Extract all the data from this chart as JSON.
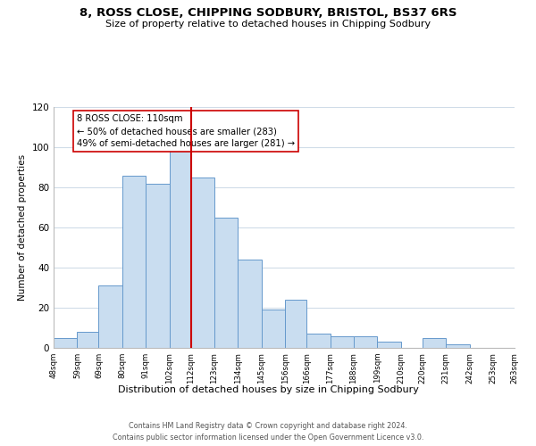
{
  "title": "8, ROSS CLOSE, CHIPPING SODBURY, BRISTOL, BS37 6RS",
  "subtitle": "Size of property relative to detached houses in Chipping Sodbury",
  "xlabel": "Distribution of detached houses by size in Chipping Sodbury",
  "ylabel": "Number of detached properties",
  "bins": [
    48,
    59,
    69,
    80,
    91,
    102,
    112,
    123,
    134,
    145,
    156,
    166,
    177,
    188,
    199,
    210,
    220,
    231,
    242,
    253,
    263
  ],
  "counts": [
    5,
    8,
    31,
    86,
    82,
    99,
    85,
    65,
    44,
    19,
    24,
    7,
    6,
    6,
    3,
    0,
    5,
    2,
    0,
    0
  ],
  "bar_color": "#c9ddf0",
  "bar_edge_color": "#6699cc",
  "vline_x": 112,
  "vline_color": "#cc0000",
  "annotation_text": "8 ROSS CLOSE: 110sqm\n← 50% of detached houses are smaller (283)\n49% of semi-detached houses are larger (281) →",
  "annotation_box_color": "#ffffff",
  "annotation_box_edge": "#cc0000",
  "ylim": [
    0,
    120
  ],
  "yticks": [
    0,
    20,
    40,
    60,
    80,
    100,
    120
  ],
  "tick_labels": [
    "48sqm",
    "59sqm",
    "69sqm",
    "80sqm",
    "91sqm",
    "102sqm",
    "112sqm",
    "123sqm",
    "134sqm",
    "145sqm",
    "156sqm",
    "166sqm",
    "177sqm",
    "188sqm",
    "199sqm",
    "210sqm",
    "220sqm",
    "231sqm",
    "242sqm",
    "253sqm",
    "263sqm"
  ],
  "footer_line1": "Contains HM Land Registry data © Crown copyright and database right 2024.",
  "footer_line2": "Contains public sector information licensed under the Open Government Licence v3.0.",
  "bg_color": "#ffffff",
  "grid_color": "#d0dce8"
}
